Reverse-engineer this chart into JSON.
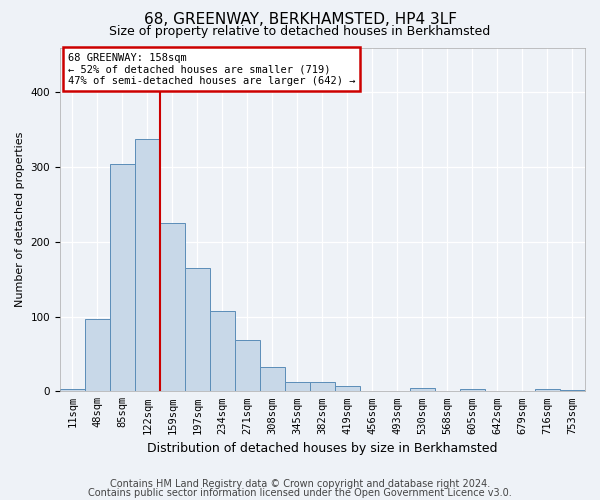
{
  "title": "68, GREENWAY, BERKHAMSTED, HP4 3LF",
  "subtitle": "Size of property relative to detached houses in Berkhamsted",
  "xlabel": "Distribution of detached houses by size in Berkhamsted",
  "ylabel": "Number of detached properties",
  "footer_line1": "Contains HM Land Registry data © Crown copyright and database right 2024.",
  "footer_line2": "Contains public sector information licensed under the Open Government Licence v3.0.",
  "bin_labels": [
    "11sqm",
    "48sqm",
    "85sqm",
    "122sqm",
    "159sqm",
    "197sqm",
    "234sqm",
    "271sqm",
    "308sqm",
    "345sqm",
    "382sqm",
    "419sqm",
    "456sqm",
    "493sqm",
    "530sqm",
    "568sqm",
    "605sqm",
    "642sqm",
    "679sqm",
    "716sqm",
    "753sqm"
  ],
  "bar_values": [
    3,
    97,
    304,
    338,
    225,
    165,
    108,
    68,
    33,
    12,
    12,
    7,
    0,
    0,
    4,
    0,
    3,
    0,
    0,
    3,
    2
  ],
  "bar_color": "#c8d8e8",
  "bar_edge_color": "#5b8db8",
  "red_line_color": "#cc0000",
  "annotation_text": "68 GREENWAY: 158sqm\n← 52% of detached houses are smaller (719)\n47% of semi-detached houses are larger (642) →",
  "annotation_box_color": "#ffffff",
  "annotation_box_edge": "#cc0000",
  "ylim": [
    0,
    460
  ],
  "background_color": "#eef2f7",
  "plot_bg_color": "#eef2f7",
  "grid_color": "#ffffff",
  "title_fontsize": 11,
  "subtitle_fontsize": 9,
  "xlabel_fontsize": 9,
  "ylabel_fontsize": 8,
  "tick_fontsize": 7.5,
  "footer_fontsize": 7
}
